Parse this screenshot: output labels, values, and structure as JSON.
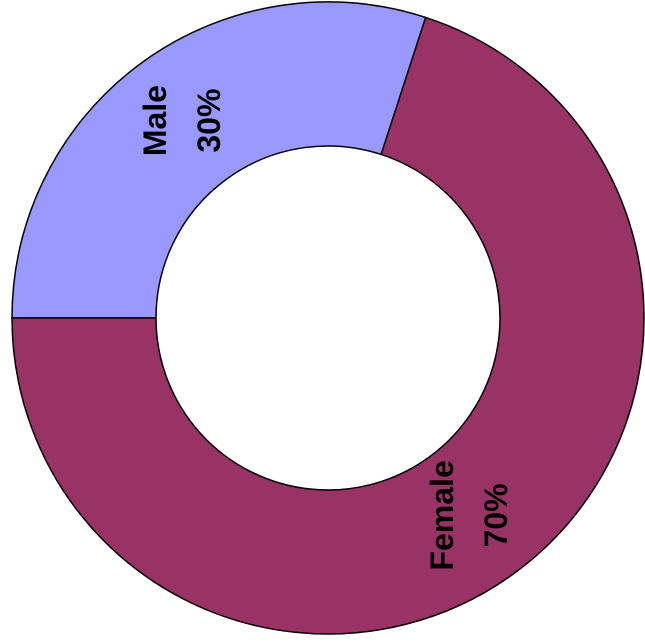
{
  "chart_data": {
    "type": "donut",
    "categories": [
      "Male",
      "Female"
    ],
    "values": [
      30,
      70
    ],
    "value_labels": [
      "30%",
      "70%"
    ],
    "colors": [
      "#9999ff",
      "#993366"
    ]
  }
}
